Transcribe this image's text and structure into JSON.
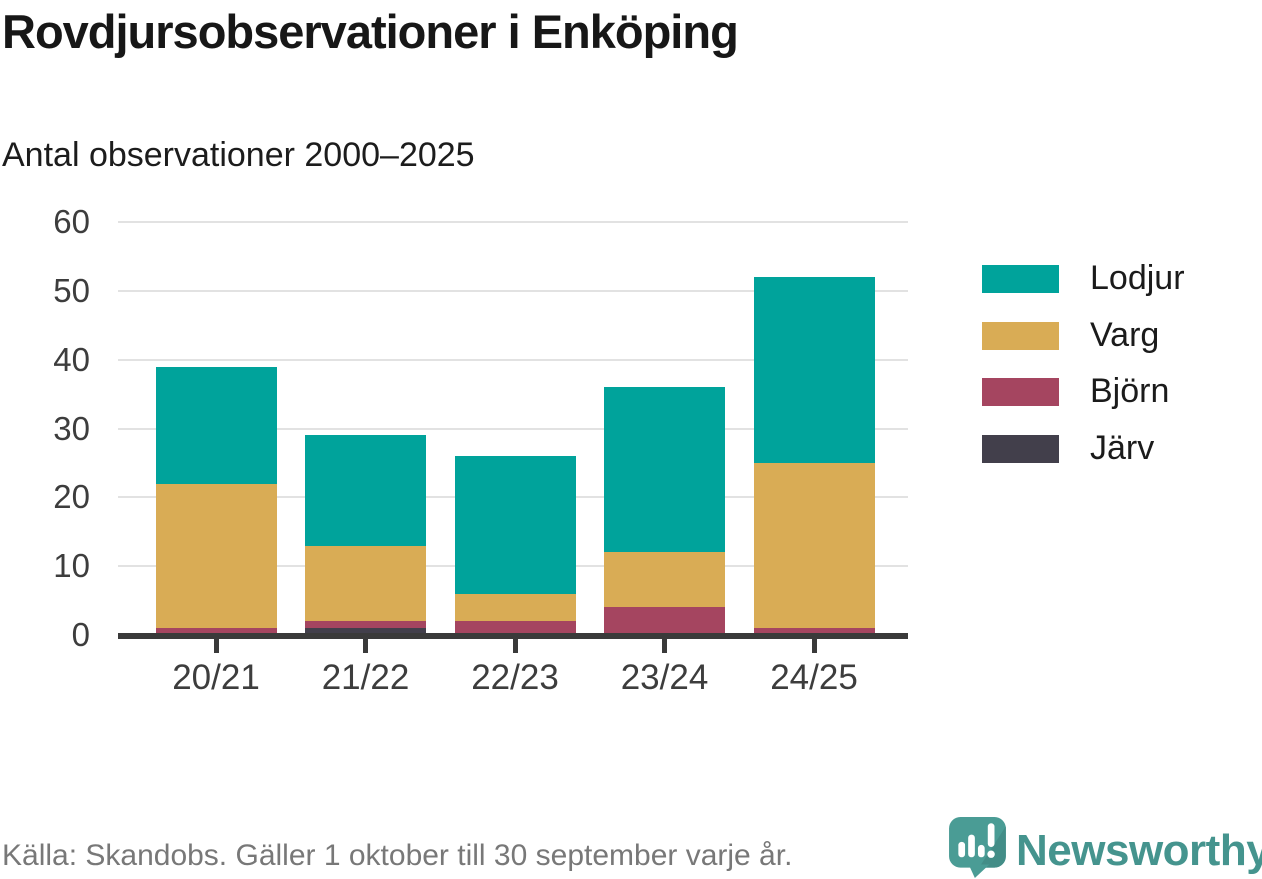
{
  "header": {
    "title": "Rovdjursobservationer i Enköping",
    "subtitle": "Antal observationer 2000–2025"
  },
  "chart_data": {
    "type": "bar",
    "stacked": true,
    "title": "Rovdjursobservationer i Enköping",
    "subtitle": "Antal observationer 2000–2025",
    "categories": [
      "20/21",
      "21/22",
      "22/23",
      "23/24",
      "24/25"
    ],
    "series": [
      {
        "name": "Järv",
        "color": "#423F4B",
        "values": [
          0,
          1,
          0,
          0,
          0
        ]
      },
      {
        "name": "Björn",
        "color": "#A54560",
        "values": [
          1,
          1,
          2,
          4,
          1
        ]
      },
      {
        "name": "Varg",
        "color": "#D9AC55",
        "values": [
          21,
          11,
          4,
          8,
          24
        ]
      },
      {
        "name": "Lodjur",
        "color": "#00A39B",
        "values": [
          17,
          16,
          20,
          24,
          27
        ]
      }
    ],
    "totals": [
      39,
      29,
      26,
      36,
      52
    ],
    "xlabel": "",
    "ylabel": "",
    "ylim": [
      0,
      60
    ],
    "yticks": [
      0,
      10,
      20,
      30,
      40,
      50,
      60
    ],
    "grid": "horizontal",
    "gridline_color": "#e2e2e2",
    "axis_color": "#3a3a3a",
    "legend_position": "right",
    "legend_order": [
      "Lodjur",
      "Varg",
      "Björn",
      "Järv"
    ]
  },
  "footer": {
    "source_text": "Källa: Skandobs. Gäller 1 oktober till 30 september varje år.",
    "brand": "Newsworthy",
    "brand_color": "#45948E"
  }
}
